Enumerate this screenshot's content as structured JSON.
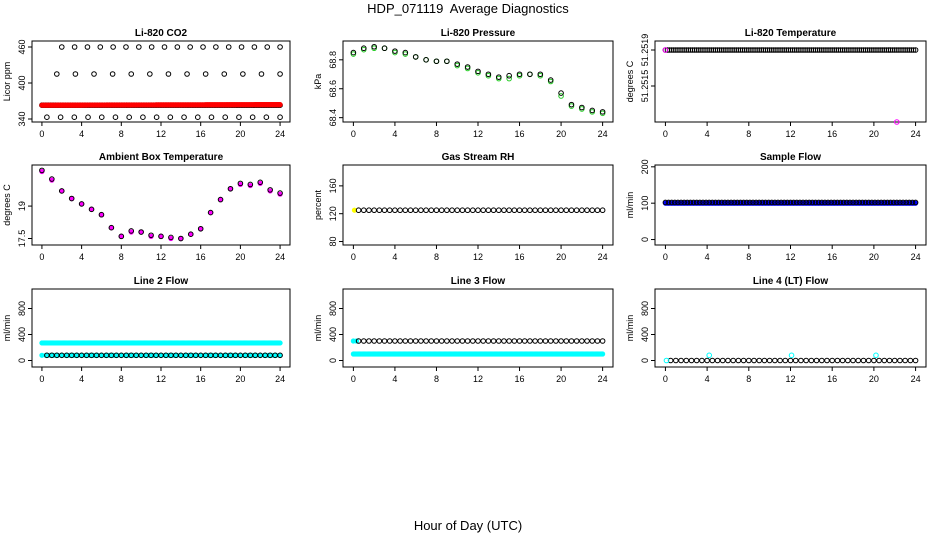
{
  "title": "HDP_071119  Average Diagnostics",
  "x_axis_title": "Hour of Day (UTC)",
  "chart_data": [
    {
      "type": "scatter",
      "title": "Li-820 CO2",
      "ylabel": "Licor ppm",
      "ylim": [
        335,
        470
      ],
      "yticks": [
        340,
        400,
        460
      ],
      "xlim": [
        -1,
        25
      ],
      "xticks": [
        0,
        4,
        8,
        12,
        16,
        20,
        24
      ],
      "grid": false,
      "series": [
        {
          "color": "#000000",
          "kind": "hollow",
          "segments": [
            {
              "x0": 0.0,
              "x1": 24.0,
              "y0": 363,
              "y1": 363,
              "step": 0.17
            },
            {
              "x0": 2.0,
              "x1": 24.0,
              "y0": 460,
              "y1": 460,
              "step": 1.3
            },
            {
              "x0": 1.5,
              "x1": 24.0,
              "y0": 415,
              "y1": 415,
              "step": 1.9
            },
            {
              "x0": 0.5,
              "x1": 24.0,
              "y0": 343,
              "y1": 343,
              "step": 1.4
            }
          ]
        },
        {
          "color": "#ff0000",
          "kind": "filled",
          "segments": [
            {
              "x0": 0.0,
              "x1": 24.0,
              "y0": 363,
              "y1": 364,
              "step": 0.1
            }
          ]
        }
      ]
    },
    {
      "type": "scatter",
      "title": "Li-820 Pressure",
      "ylabel": "kPa",
      "ylim": [
        68.37,
        68.93
      ],
      "yticks": [
        68.4,
        68.6,
        68.8
      ],
      "xlim": [
        -1,
        25
      ],
      "xticks": [
        0,
        4,
        8,
        12,
        16,
        20,
        24
      ],
      "grid": false,
      "series": [
        {
          "color": "#22cc22",
          "kind": "hollow",
          "points": [
            [
              0,
              68.84
            ],
            [
              1,
              68.87
            ],
            [
              2,
              68.88
            ],
            [
              3,
              68.88
            ],
            [
              4,
              68.85
            ],
            [
              5,
              68.84
            ],
            [
              6,
              68.82
            ],
            [
              7,
              68.8
            ],
            [
              8,
              68.79
            ],
            [
              9,
              68.79
            ],
            [
              10,
              68.76
            ],
            [
              11,
              68.74
            ],
            [
              12,
              68.71
            ],
            [
              13,
              68.69
            ],
            [
              14,
              68.67
            ],
            [
              15,
              68.67
            ],
            [
              16,
              68.69
            ],
            [
              17,
              68.7
            ],
            [
              18,
              68.69
            ],
            [
              19,
              68.65
            ],
            [
              20,
              68.55
            ],
            [
              21,
              68.48
            ],
            [
              22,
              68.46
            ],
            [
              23,
              68.44
            ],
            [
              24,
              68.43
            ]
          ]
        },
        {
          "color": "#000000",
          "kind": "hollow",
          "points": [
            [
              0,
              68.85
            ],
            [
              1,
              68.88
            ],
            [
              2,
              68.89
            ],
            [
              3,
              68.88
            ],
            [
              4,
              68.86
            ],
            [
              5,
              68.85
            ],
            [
              6,
              68.82
            ],
            [
              7,
              68.8
            ],
            [
              8,
              68.79
            ],
            [
              9,
              68.79
            ],
            [
              10,
              68.77
            ],
            [
              11,
              68.75
            ],
            [
              12,
              68.72
            ],
            [
              13,
              68.7
            ],
            [
              14,
              68.68
            ],
            [
              15,
              68.69
            ],
            [
              16,
              68.7
            ],
            [
              17,
              68.7
            ],
            [
              18,
              68.7
            ],
            [
              19,
              68.66
            ],
            [
              20,
              68.57
            ],
            [
              21,
              68.49
            ],
            [
              22,
              68.47
            ],
            [
              23,
              68.45
            ],
            [
              24,
              68.44
            ]
          ]
        }
      ]
    },
    {
      "type": "scatter",
      "title": "Li-820 Temperature",
      "ylabel": "degrees C",
      "ylim": [
        51.2511,
        51.252
      ],
      "yticks": [
        51.2515,
        51.2519
      ],
      "ytick_labels": [
        "51.2515",
        "51.2519"
      ],
      "xlim": [
        -1,
        25
      ],
      "xticks": [
        0,
        4,
        8,
        12,
        16,
        20,
        24
      ],
      "grid": false,
      "series": [
        {
          "color": "#000000",
          "kind": "hollow",
          "segments": [
            {
              "x0": 0.0,
              "x1": 24.0,
              "y0": 51.2519,
              "y1": 51.2519,
              "step": 0.2
            }
          ]
        },
        {
          "color": "#ff00ff",
          "kind": "hollow",
          "points": [
            [
              0,
              51.2519
            ],
            [
              22.2,
              51.2511
            ]
          ]
        }
      ]
    },
    {
      "type": "scatter",
      "title": "Ambient Box Temperature",
      "ylabel": "degrees C",
      "ylim": [
        17.2,
        20.9
      ],
      "yticks": [
        17.5,
        19.0
      ],
      "xlim": [
        -1,
        25
      ],
      "xticks": [
        0,
        4,
        8,
        12,
        16,
        20,
        24
      ],
      "grid": false,
      "series": [
        {
          "color": "#ff00ff",
          "kind": "filled",
          "points": [
            [
              0,
              20.6
            ],
            [
              1,
              20.2
            ],
            [
              2,
              19.7
            ],
            [
              3,
              19.35
            ],
            [
              4,
              19.1
            ],
            [
              5,
              18.85
            ],
            [
              6,
              18.6
            ],
            [
              7,
              18.0
            ],
            [
              8,
              17.6
            ],
            [
              9,
              17.8
            ],
            [
              10,
              17.8
            ],
            [
              11,
              17.6
            ],
            [
              12,
              17.6
            ],
            [
              13,
              17.5
            ],
            [
              14,
              17.5
            ],
            [
              15,
              17.7
            ],
            [
              16,
              17.95
            ],
            [
              17,
              18.7
            ],
            [
              18,
              19.3
            ],
            [
              19,
              19.8
            ],
            [
              20,
              20.0
            ],
            [
              21,
              19.95
            ],
            [
              22,
              20.05
            ],
            [
              23,
              19.7
            ],
            [
              24,
              19.55
            ]
          ]
        },
        {
          "color": "#000000",
          "kind": "hollow",
          "points": [
            [
              0,
              20.65
            ],
            [
              1,
              20.25
            ],
            [
              2,
              19.7
            ],
            [
              3,
              19.35
            ],
            [
              4,
              19.1
            ],
            [
              5,
              18.85
            ],
            [
              6,
              18.6
            ],
            [
              7,
              18.0
            ],
            [
              8,
              17.6
            ],
            [
              9,
              17.85
            ],
            [
              10,
              17.8
            ],
            [
              11,
              17.65
            ],
            [
              12,
              17.6
            ],
            [
              13,
              17.55
            ],
            [
              14,
              17.5
            ],
            [
              15,
              17.7
            ],
            [
              16,
              17.95
            ],
            [
              17,
              18.7
            ],
            [
              18,
              19.3
            ],
            [
              19,
              19.8
            ],
            [
              20,
              20.05
            ],
            [
              21,
              20.0
            ],
            [
              22,
              20.1
            ],
            [
              23,
              19.75
            ],
            [
              24,
              19.6
            ]
          ]
        }
      ]
    },
    {
      "type": "scatter",
      "title": "Gas Stream RH",
      "ylabel": "percent",
      "ylim": [
        75,
        190
      ],
      "yticks": [
        80,
        120,
        160
      ],
      "xlim": [
        -1,
        25
      ],
      "xticks": [
        0,
        4,
        8,
        12,
        16,
        20,
        24
      ],
      "grid": false,
      "series": [
        {
          "color": "#ffff00",
          "kind": "filled",
          "points": [
            [
              0.1,
              125
            ]
          ]
        },
        {
          "color": "#000000",
          "kind": "hollow",
          "segments": [
            {
              "x0": 0.5,
              "x1": 24.0,
              "y0": 125,
              "y1": 125,
              "step": 0.5
            }
          ]
        }
      ]
    },
    {
      "type": "scatter",
      "title": "Sample Flow",
      "ylabel": "ml/min",
      "ylim": [
        -15,
        205
      ],
      "yticks": [
        0,
        100,
        200
      ],
      "xlim": [
        -1,
        25
      ],
      "xticks": [
        0,
        4,
        8,
        12,
        16,
        20,
        24
      ],
      "grid": false,
      "series": [
        {
          "color": "#0000ff",
          "kind": "filled",
          "segments": [
            {
              "x0": 0.0,
              "x1": 24.0,
              "y0": 100,
              "y1": 100,
              "step": 0.12
            }
          ]
        },
        {
          "color": "#000000",
          "kind": "hollow",
          "segments": [
            {
              "x0": 0.0,
              "x1": 24.0,
              "y0": 102,
              "y1": 102,
              "step": 0.3
            }
          ]
        }
      ]
    },
    {
      "type": "scatter",
      "title": "Line 2 Flow",
      "ylabel": "ml/min",
      "ylim": [
        -100,
        1100
      ],
      "yticks": [
        0,
        400,
        800
      ],
      "xlim": [
        -1,
        25
      ],
      "xticks": [
        0,
        4,
        8,
        12,
        16,
        20,
        24
      ],
      "grid": false,
      "series": [
        {
          "color": "#00ffff",
          "kind": "filled",
          "segments": [
            {
              "x0": 0.0,
              "x1": 24.0,
              "y0": 270,
              "y1": 270,
              "step": 0.12
            },
            {
              "x0": 0.0,
              "x1": 24.0,
              "y0": 80,
              "y1": 80,
              "step": 0.4
            }
          ]
        },
        {
          "color": "#000000",
          "kind": "hollow",
          "segments": [
            {
              "x0": 0.5,
              "x1": 24.0,
              "y0": 80,
              "y1": 80,
              "step": 0.5
            }
          ]
        }
      ]
    },
    {
      "type": "scatter",
      "title": "Line 3 Flow",
      "ylabel": "ml/min",
      "ylim": [
        -100,
        1100
      ],
      "yticks": [
        0,
        400,
        800
      ],
      "xlim": [
        -1,
        25
      ],
      "xticks": [
        0,
        4,
        8,
        12,
        16,
        20,
        24
      ],
      "grid": false,
      "series": [
        {
          "color": "#00ffff",
          "kind": "filled",
          "segments": [
            {
              "x0": 0.0,
              "x1": 24.0,
              "y0": 100,
              "y1": 100,
              "step": 0.12
            },
            {
              "x0": 0.0,
              "x1": 0.3,
              "y0": 300,
              "y1": 300,
              "step": 0.3
            }
          ]
        },
        {
          "color": "#000000",
          "kind": "hollow",
          "segments": [
            {
              "x0": 0.5,
              "x1": 24.0,
              "y0": 300,
              "y1": 300,
              "step": 0.5
            }
          ]
        }
      ]
    },
    {
      "type": "scatter",
      "title": "Line 4 (LT) Flow",
      "ylabel": "ml/min",
      "ylim": [
        -100,
        1100
      ],
      "yticks": [
        0,
        400,
        800
      ],
      "xlim": [
        -1,
        25
      ],
      "xticks": [
        0,
        4,
        8,
        12,
        16,
        20,
        24
      ],
      "grid": false,
      "series": [
        {
          "color": "#000000",
          "kind": "hollow",
          "segments": [
            {
              "x0": 0.5,
              "x1": 24.0,
              "y0": 0,
              "y1": 0,
              "step": 0.5
            }
          ]
        },
        {
          "color": "#00ffff",
          "kind": "hollow",
          "points": [
            [
              0.1,
              0
            ],
            [
              4.2,
              80
            ],
            [
              12.1,
              80
            ],
            [
              20.2,
              80
            ]
          ]
        }
      ]
    }
  ]
}
